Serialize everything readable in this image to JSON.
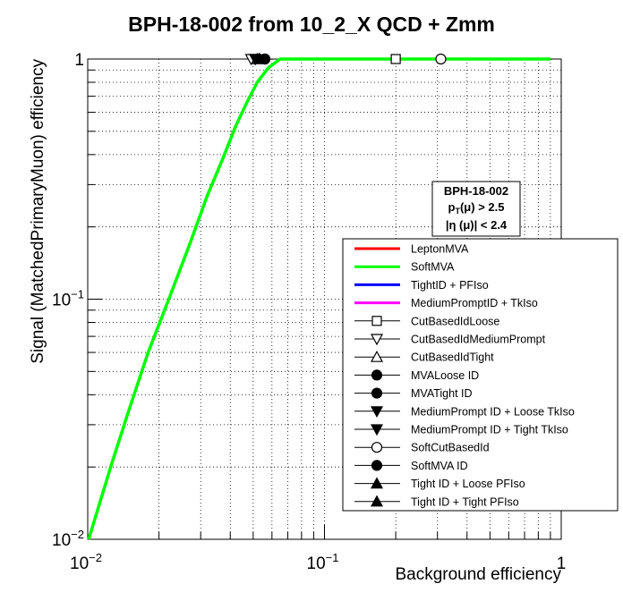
{
  "chart_data": {
    "type": "line",
    "title": "BPH-18-002 from 10_2_X QCD + Zmm",
    "xlabel": "Background efficiency",
    "ylabel": "Signal (MatchedPrimaryMuon) efficiency",
    "xscale": "log",
    "yscale": "log",
    "xlim": [
      0.01,
      1
    ],
    "ylim": [
      0.01,
      1
    ],
    "grid": true,
    "x_ticks": [
      "10^-2",
      "10^-1",
      "1"
    ],
    "y_ticks": [
      "10^-2",
      "10^-1",
      "1"
    ],
    "series": [
      {
        "name": "LeptonMVA",
        "color": "#ff0000",
        "x": [],
        "y": []
      },
      {
        "name": "SoftMVA",
        "color": "#00ff00",
        "x": [
          0.0101,
          0.0125,
          0.015,
          0.018,
          0.022,
          0.027,
          0.032,
          0.037,
          0.042,
          0.047,
          0.052,
          0.058,
          0.065,
          0.08,
          0.2,
          0.9
        ],
        "y": [
          0.01,
          0.02,
          0.035,
          0.06,
          0.1,
          0.17,
          0.27,
          0.38,
          0.52,
          0.66,
          0.8,
          0.92,
          1.0,
          1.0,
          1.0,
          1.0
        ]
      },
      {
        "name": "TightID + PFIso",
        "color": "#0000ff",
        "x": [],
        "y": []
      },
      {
        "name": "MediumPromptID + TkIso",
        "color": "#ff00ff",
        "x": [],
        "y": []
      }
    ],
    "markers": [
      {
        "name": "CutBasedIdLoose",
        "shape": "open-square",
        "x": 0.2,
        "y": 1.0
      },
      {
        "name": "CutBasedIdMediumPrompt",
        "shape": "open-triangle-down",
        "x": 0.049,
        "y": 1.0
      },
      {
        "name": "CutBasedIdTight",
        "shape": "open-triangle-up",
        "x": 0.052,
        "y": 1.0
      },
      {
        "name": "MVALoose ID",
        "shape": "filled-circle",
        "x": 0.056,
        "y": 1.0
      },
      {
        "name": "MVATight ID",
        "shape": "filled-circle",
        "x": 0.056,
        "y": 1.0
      },
      {
        "name": "MediumPrompt ID + Loose TkIso",
        "shape": "filled-triangle-down",
        "x": 0.051,
        "y": 1.0
      },
      {
        "name": "MediumPrompt ID + Tight TkIso",
        "shape": "filled-triangle-down",
        "x": 0.051,
        "y": 1.0
      },
      {
        "name": "SoftCutBasedId",
        "shape": "open-circle",
        "x": 0.31,
        "y": 1.0
      },
      {
        "name": "SoftMVA ID",
        "shape": "filled-circle",
        "x": 0.056,
        "y": 1.0
      },
      {
        "name": "Tight ID + Loose PFIso",
        "shape": "filled-triangle-up",
        "x": 0.053,
        "y": 1.0
      },
      {
        "name": "Tight ID + Tight PFIso",
        "shape": "filled-triangle-up",
        "x": 0.053,
        "y": 1.0
      }
    ],
    "legend": {
      "placement": "right",
      "entries": [
        {
          "label": "LeptonMVA",
          "kind": "line",
          "color": "#ff0000"
        },
        {
          "label": "SoftMVA",
          "kind": "line",
          "color": "#00ff00"
        },
        {
          "label": "TightID + PFIso",
          "kind": "line",
          "color": "#0000ff"
        },
        {
          "label": "MediumPromptID + TkIso",
          "kind": "line",
          "color": "#ff00ff"
        },
        {
          "label": "CutBasedIdLoose",
          "kind": "marker",
          "shape": "open-square"
        },
        {
          "label": "CutBasedIdMediumPrompt",
          "kind": "marker",
          "shape": "open-triangle-down"
        },
        {
          "label": "CutBasedIdTight",
          "kind": "marker",
          "shape": "open-triangle-up"
        },
        {
          "label": "MVALoose ID",
          "kind": "marker",
          "shape": "filled-circle"
        },
        {
          "label": "MVATight ID",
          "kind": "marker",
          "shape": "filled-circle"
        },
        {
          "label": "MediumPrompt ID + Loose TkIso",
          "kind": "marker",
          "shape": "filled-triangle-down"
        },
        {
          "label": "MediumPrompt ID + Tight TkIso",
          "kind": "marker",
          "shape": "filled-triangle-down"
        },
        {
          "label": "SoftCutBasedId",
          "kind": "marker",
          "shape": "open-circle"
        },
        {
          "label": "SoftMVA ID",
          "kind": "marker",
          "shape": "filled-circle"
        },
        {
          "label": "Tight ID + Loose PFIso",
          "kind": "marker",
          "shape": "filled-triangle-up"
        },
        {
          "label": "Tight ID + Tight PFIso",
          "kind": "marker",
          "shape": "filled-triangle-up"
        }
      ]
    },
    "annotation": {
      "line1": "BPH-18-002",
      "line2_main": "p",
      "line2_sub": "T",
      "line2_rest": "(μ) > 2.5",
      "line3": "|η (μ)| < 2.4"
    }
  }
}
